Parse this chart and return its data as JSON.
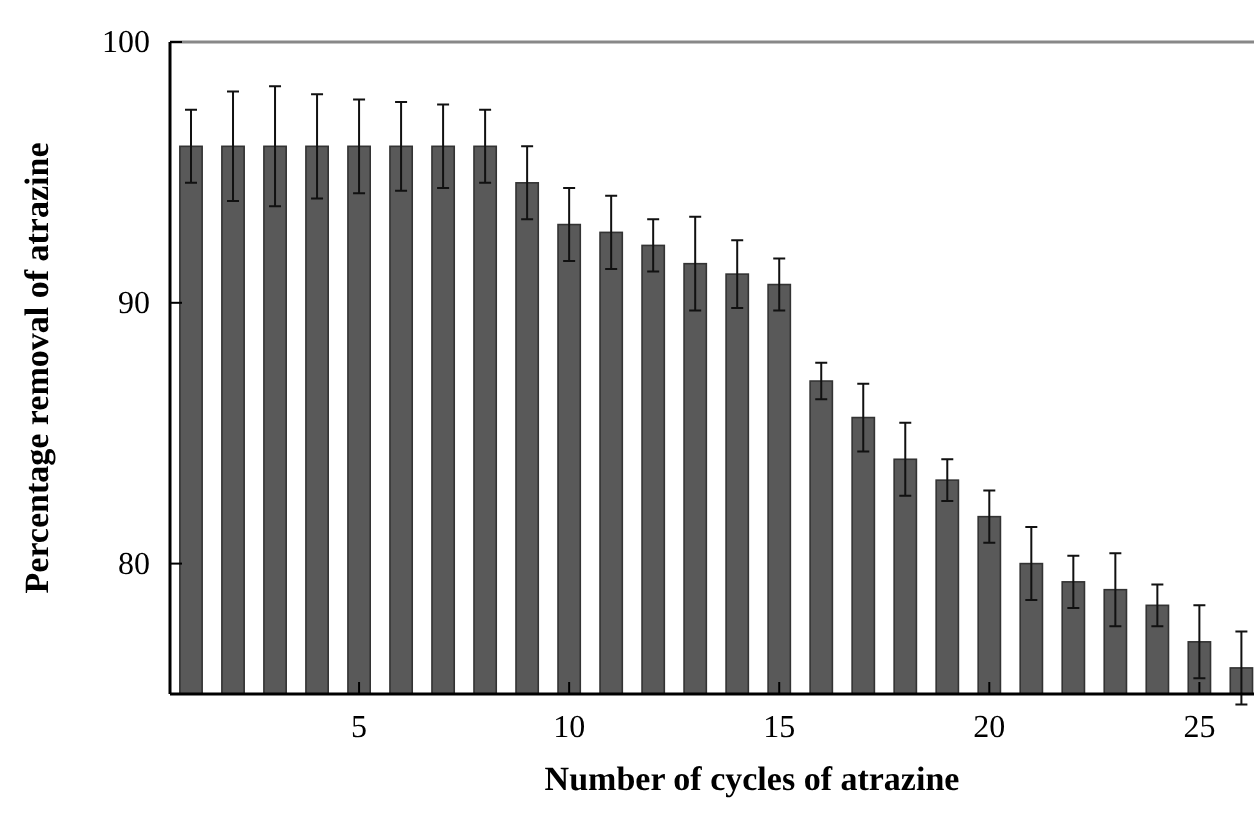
{
  "chart_data": {
    "type": "bar",
    "xlabel": "Number of cycles of atrazine",
    "ylabel": "Percentage removal of atrazine",
    "x": [
      1,
      2,
      3,
      4,
      5,
      6,
      7,
      8,
      9,
      10,
      11,
      12,
      13,
      14,
      15,
      16,
      17,
      18,
      19,
      20,
      21,
      22,
      23,
      24,
      25,
      26
    ],
    "values": [
      96,
      96,
      96,
      96,
      96,
      96,
      96,
      96,
      94.6,
      93,
      92.7,
      92.2,
      91.5,
      91.1,
      90.7,
      87,
      85.6,
      84,
      83.2,
      81.8,
      80,
      79.3,
      79,
      78.4,
      77,
      76
    ],
    "errors": [
      1.4,
      2.1,
      2.3,
      2.0,
      1.8,
      1.7,
      1.6,
      1.4,
      1.4,
      1.4,
      1.4,
      1.0,
      1.8,
      1.3,
      1.0,
      0.7,
      1.3,
      1.4,
      0.8,
      1.0,
      1.4,
      1.0,
      1.4,
      0.8,
      1.4,
      1.4
    ],
    "color": "#595959",
    "xlim": [
      0.5,
      26.3
    ],
    "ylim": [
      75,
      100
    ],
    "xticks": [
      5,
      10,
      15,
      20,
      25
    ],
    "yticks": [
      80,
      90,
      100
    ],
    "grid": false
  }
}
